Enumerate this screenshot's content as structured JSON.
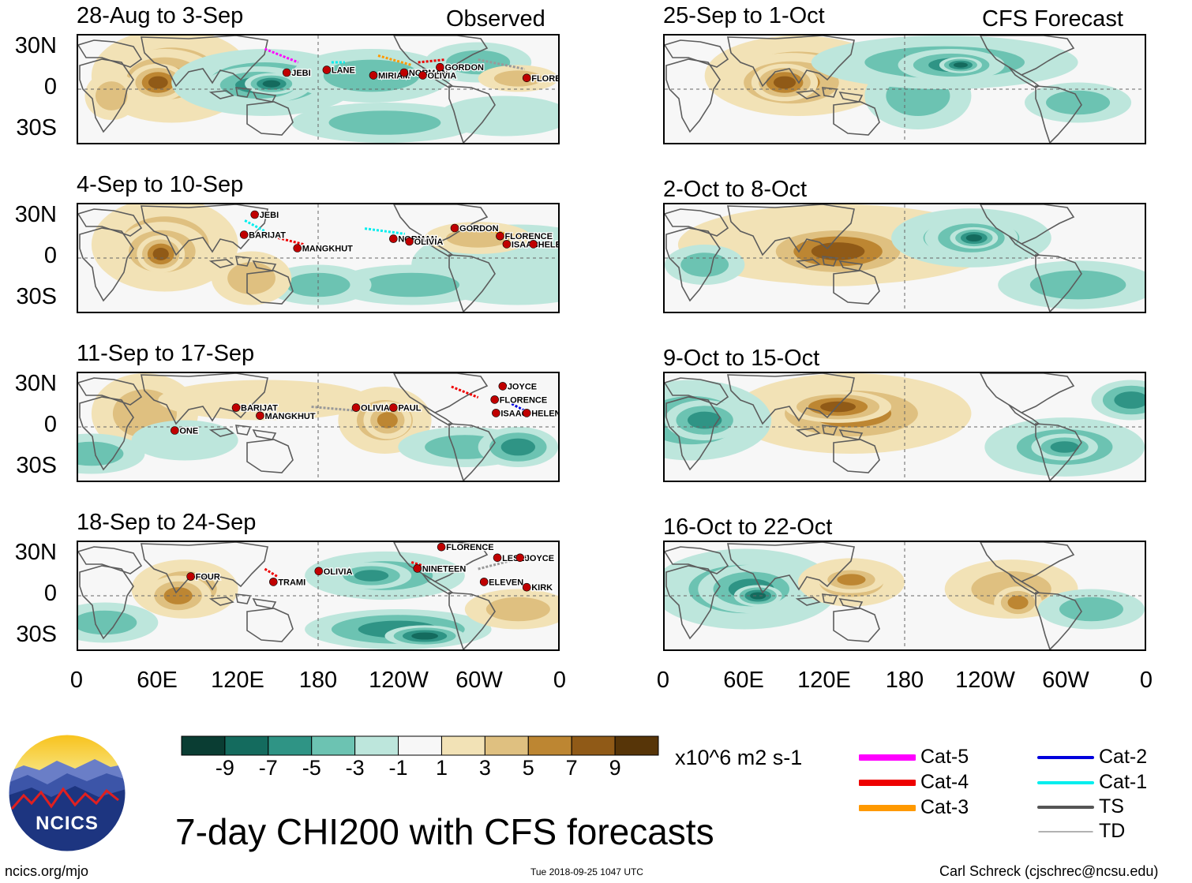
{
  "headers": {
    "observed": "Observed",
    "forecast": "CFS Forecast"
  },
  "lat_labels": [
    "30N",
    "0",
    "30S"
  ],
  "lon_labels": [
    "0",
    "60E",
    "120E",
    "180",
    "120W",
    "60W",
    "0"
  ],
  "panels": {
    "observed": [
      {
        "title": "28-Aug to 3-Sep",
        "storms": [
          "JEBI",
          "LANE",
          "MIRIAM",
          "NORMAN",
          "OLIVIA",
          "GORDON",
          "FLORENCE"
        ]
      },
      {
        "title": "4-Sep to 10-Sep",
        "storms": [
          "JEBI",
          "BARIJAT",
          "MANGKHUT",
          "NORMAN",
          "OLIVIA",
          "GORDON",
          "FLORENCE",
          "ISAAC",
          "HELENE"
        ]
      },
      {
        "title": "11-Sep to 17-Sep",
        "storms": [
          "BARIJAT",
          "MANGKHUT",
          "ONE",
          "OLIVIA",
          "PAUL",
          "JOYCE",
          "FLORENCE",
          "ISAAC",
          "HELENE"
        ]
      },
      {
        "title": "18-Sep to 24-Sep",
        "storms": [
          "FOUR",
          "TRAMI",
          "OLIVIA",
          "NINETEEN",
          "FLORENCE",
          "LESLIE",
          "JOYCE",
          "ELEVEN",
          "KIRK"
        ]
      }
    ],
    "forecast": [
      {
        "title": "25-Sep to 1-Oct"
      },
      {
        "title": "2-Oct to 8-Oct"
      },
      {
        "title": "9-Oct to 15-Oct"
      },
      {
        "title": "16-Oct to 22-Oct"
      }
    ]
  },
  "colorbar": {
    "unit": "x10^6 m2 s-1",
    "tick_labels": [
      "-9",
      "-7",
      "-5",
      "-3",
      "-1",
      "1",
      "3",
      "5",
      "7",
      "9"
    ],
    "colors": [
      "#0a3d33",
      "#146b5e",
      "#2f9485",
      "#6cc3b2",
      "#bde6dc",
      "#f7f7f7",
      "#f2e2b6",
      "#dfc080",
      "#bd8632",
      "#905a17",
      "#573508"
    ]
  },
  "legend": {
    "items": [
      {
        "label": "Cat-5",
        "color": "#ff00ff",
        "width": "thick"
      },
      {
        "label": "Cat-4",
        "color": "#ee0000",
        "width": "thick"
      },
      {
        "label": "Cat-3",
        "color": "#ff9900",
        "width": "thick"
      },
      {
        "label": "Cat-2",
        "color": "#0000dd",
        "width": "medium"
      },
      {
        "label": "Cat-1",
        "color": "#00eeee",
        "width": "medium"
      },
      {
        "label": "TS",
        "color": "#555555",
        "width": "medium"
      },
      {
        "label": "TD",
        "color": "#999999",
        "width": "thin"
      }
    ]
  },
  "logo": {
    "text": "NCICS"
  },
  "main_title": "7-day CHI200 with CFS forecasts",
  "footer": {
    "website": "ncics.org/mjo",
    "timestamp": "Tue 2018-09-25 1047 UTC",
    "author": "Carl Schreck (cjschrec@ncsu.edu)"
  }
}
